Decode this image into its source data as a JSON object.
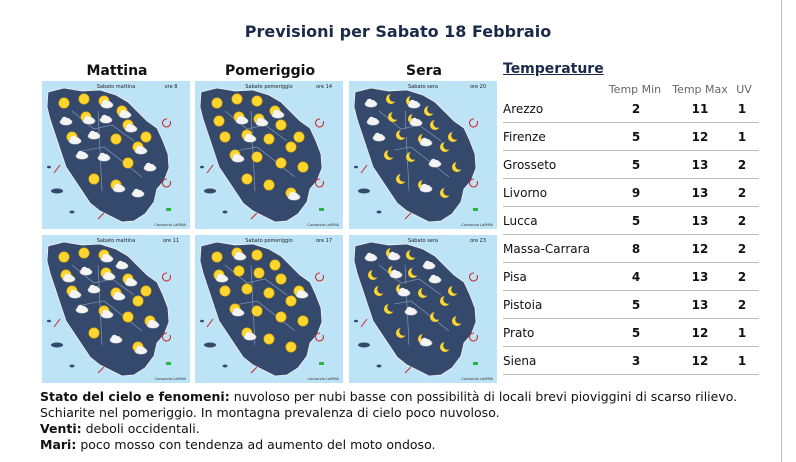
{
  "title": "Previsioni per Sabato 18 Febbraio",
  "columns": [
    "Mattina",
    "Pomeriggio",
    "Sera"
  ],
  "maps": [
    {
      "label": "Sabato mattina",
      "hour": "ore 8",
      "credit": "Consorzio LaMMA",
      "icons": [
        "sun",
        "sun",
        "cloud-sun",
        "cloud-sun",
        "cloud",
        "cloud-sun",
        "cloud",
        "cloud-sun",
        "sun",
        "cloud-sun",
        "cloud",
        "sun",
        "cloud-sun",
        "cloud",
        "cloud",
        "sun",
        "cloud",
        "sun",
        "cloud-sun",
        "cloud"
      ]
    },
    {
      "label": "Sabato pomeriggio",
      "hour": "ore 14",
      "credit": "Consorzio LaMMA",
      "icons": [
        "sun",
        "sun",
        "sun",
        "cloud-sun",
        "sun",
        "cloud-sun",
        "cloud-sun",
        "sun",
        "sun",
        "sun",
        "cloud-sun",
        "sun",
        "sun",
        "cloud-sun",
        "sun",
        "sun",
        "sun",
        "sun",
        "sun",
        "cloud-sun"
      ]
    },
    {
      "label": "Sabato sera",
      "hour": "ore 20",
      "credit": "Consorzio LaMMA",
      "icons": [
        "cloud",
        "moon",
        "cloud-moon",
        "moon",
        "cloud",
        "moon",
        "cloud-moon",
        "moon",
        "moon",
        "cloud",
        "moon",
        "cloud-moon",
        "moon",
        "moon",
        "moon",
        "cloud",
        "moon",
        "moon",
        "cloud-moon",
        "moon"
      ]
    },
    {
      "label": "Sabato mattina",
      "hour": "ore 11",
      "credit": "Consorzio LaMMA",
      "icons": [
        "sun",
        "sun",
        "cloud-sun",
        "cloud",
        "cloud-sun",
        "cloud",
        "cloud-sun",
        "cloud-sun",
        "sun",
        "cloud-sun",
        "cloud",
        "cloud-sun",
        "sun",
        "cloud",
        "cloud-sun",
        "sun",
        "cloud-sun",
        "sun",
        "cloud",
        "cloud-sun"
      ]
    },
    {
      "label": "Sabato pomeriggio",
      "hour": "ore 17",
      "credit": "Consorzio LaMMA",
      "icons": [
        "sun",
        "cloud-sun",
        "sun",
        "sun",
        "cloud-sun",
        "sun",
        "sun",
        "sun",
        "cloud-sun",
        "sun",
        "sun",
        "sun",
        "sun",
        "cloud-sun",
        "sun",
        "sun",
        "sun",
        "cloud-sun",
        "sun",
        "sun"
      ]
    },
    {
      "label": "Sabato sera",
      "hour": "ore 23",
      "credit": "Consorzio LaMMA",
      "icons": [
        "cloud",
        "cloud-moon",
        "moon",
        "cloud",
        "moon",
        "cloud-moon",
        "moon",
        "cloud",
        "moon",
        "moon",
        "cloud-moon",
        "moon",
        "moon",
        "moon",
        "cloud",
        "moon",
        "moon",
        "moon",
        "cloud-moon",
        "moon"
      ]
    }
  ],
  "temperature": {
    "title": "Temperature",
    "headers": [
      "Temp Min",
      "Temp Max",
      "UV"
    ],
    "rows": [
      {
        "city": "Arezzo",
        "min": 2,
        "max": 11,
        "uv": 1
      },
      {
        "city": "Firenze",
        "min": 5,
        "max": 12,
        "uv": 1
      },
      {
        "city": "Grosseto",
        "min": 5,
        "max": 13,
        "uv": 2
      },
      {
        "city": "Livorno",
        "min": 9,
        "max": 13,
        "uv": 2
      },
      {
        "city": "Lucca",
        "min": 5,
        "max": 13,
        "uv": 2
      },
      {
        "city": "Massa-Carrara",
        "min": 8,
        "max": 12,
        "uv": 2
      },
      {
        "city": "Pisa",
        "min": 4,
        "max": 13,
        "uv": 2
      },
      {
        "city": "Pistoia",
        "min": 5,
        "max": 13,
        "uv": 2
      },
      {
        "city": "Prato",
        "min": 5,
        "max": 12,
        "uv": 1
      },
      {
        "city": "Siena",
        "min": 3,
        "max": 12,
        "uv": 1
      }
    ]
  },
  "forecast": {
    "sky_label": "Stato del cielo e fenomeni:",
    "sky_text": "nuvoloso per nubi basse con possibilità di locali brevi pioviggini di scarso rilievo. Schiarite nel pomeriggio. In montagna prevalenza di cielo poco nuvoloso.",
    "wind_label": "Venti:",
    "wind_text": "deboli occidentali.",
    "sea_label": "Mari:",
    "sea_text": "poco mosso con tendenza ad aumento del moto ondoso."
  },
  "colors": {
    "sea": "#bde3f6",
    "land": "#34496b",
    "title": "#1b2a4a",
    "sun": "#ffd630",
    "cloud": "#f4f4f4",
    "moon": "#ffd630"
  }
}
